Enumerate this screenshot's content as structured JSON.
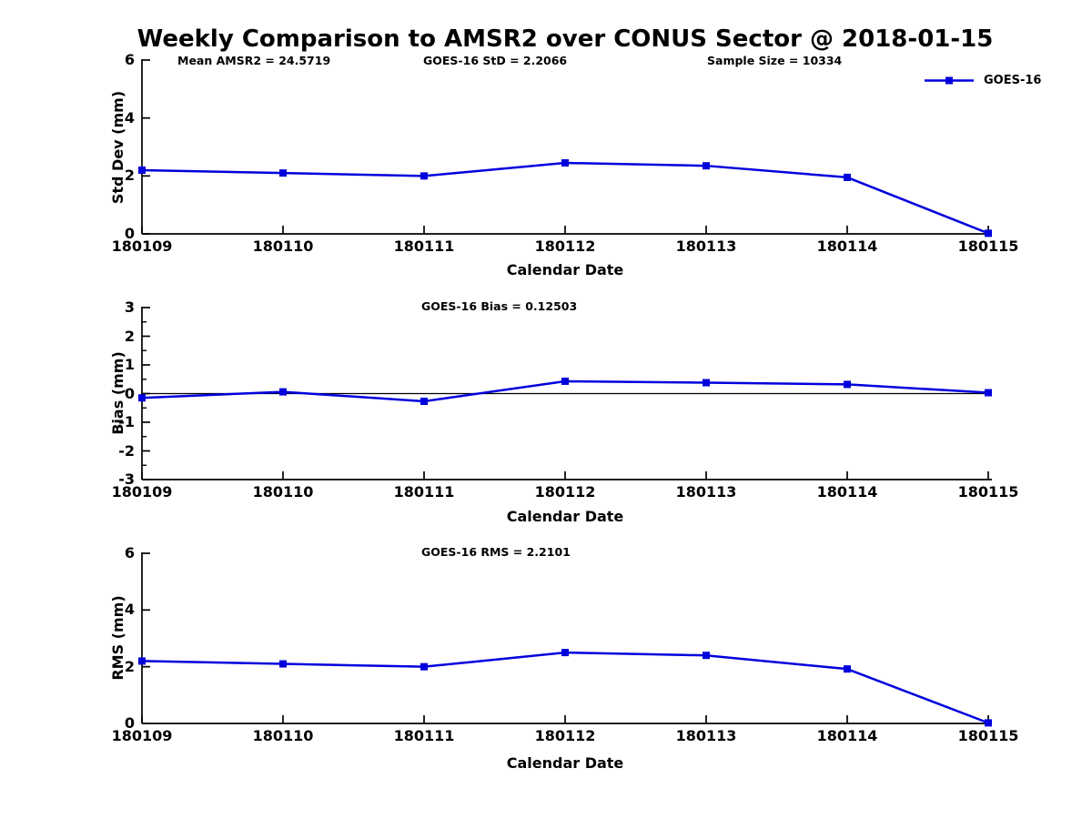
{
  "figure": {
    "title": "Weekly Comparison to AMSR2 over CONUS Sector @ 2018-01-15"
  },
  "legend": {
    "label": "GOES-16",
    "position": "top-right"
  },
  "colors": {
    "series_blue": "#0000dd",
    "axis_black": "#000000",
    "background": "#ffffff"
  },
  "chart_data": [
    {
      "type": "line",
      "series_name": "GOES-16",
      "marker": "square",
      "grid": false,
      "categories": [
        "180109",
        "180110",
        "180111",
        "180112",
        "180113",
        "180114",
        "180115"
      ],
      "values": [
        2.2,
        2.1,
        2.0,
        2.45,
        2.35,
        1.95,
        0.02
      ],
      "xlabel": "Calendar Date",
      "ylabel": "Std Dev (mm)",
      "ylim": [
        0,
        6
      ],
      "yticks": [
        0,
        2,
        4,
        6
      ],
      "annotations": [
        "Mean AMSR2 = 24.5719",
        "GOES-16 StD = 2.2066",
        "Sample Size = 10334"
      ]
    },
    {
      "type": "line",
      "series_name": "GOES-16",
      "marker": "square",
      "grid": false,
      "zero_line": true,
      "minor_tick_step": 0.5,
      "categories": [
        "180109",
        "180110",
        "180111",
        "180112",
        "180113",
        "180114",
        "180115"
      ],
      "values": [
        -0.15,
        0.06,
        -0.27,
        0.43,
        0.38,
        0.32,
        0.03
      ],
      "xlabel": "Calendar Date",
      "ylabel": "Bias (mm)",
      "ylim": [
        -3,
        3
      ],
      "yticks": [
        -3,
        -2,
        -1,
        0,
        1,
        2,
        3
      ],
      "annotations": [
        "GOES-16 Bias  = 0.12503"
      ]
    },
    {
      "type": "line",
      "series_name": "GOES-16",
      "marker": "square",
      "grid": false,
      "categories": [
        "180109",
        "180110",
        "180111",
        "180112",
        "180113",
        "180114",
        "180115"
      ],
      "values": [
        2.2,
        2.1,
        2.0,
        2.5,
        2.4,
        1.92,
        0.02
      ],
      "xlabel": "Calendar Date",
      "ylabel": "RMS (mm)",
      "ylim": [
        0,
        6
      ],
      "yticks": [
        0,
        2,
        4,
        6
      ],
      "annotations": [
        "GOES-16 RMS = 2.2101"
      ]
    }
  ]
}
